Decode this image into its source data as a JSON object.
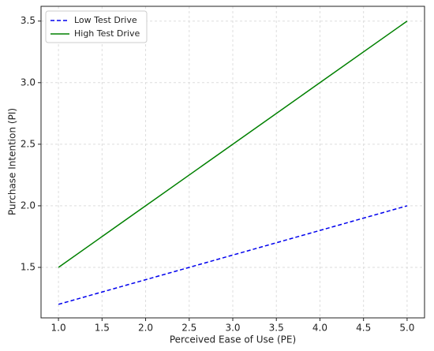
{
  "chart_data": {
    "type": "line",
    "x_label": "Perceived Ease of Use (PE)",
    "y_label": "Purchase Intention (PI)",
    "x": [
      1.0,
      2.0,
      3.0,
      4.0,
      5.0
    ],
    "series": [
      {
        "name": "Low Test Drive",
        "color": "#0000ee",
        "dash": true,
        "values": [
          1.2,
          1.4,
          1.6,
          1.8,
          2.0
        ]
      },
      {
        "name": "High Test Drive",
        "color": "#008000",
        "dash": false,
        "values": [
          1.5,
          2.0,
          2.5,
          3.0,
          3.5
        ]
      }
    ],
    "xlim": [
      0.8,
      5.2
    ],
    "ylim": [
      1.09,
      3.62
    ],
    "xticks": [
      {
        "value": 1,
        "label": "1.0"
      },
      1.5,
      {
        "value": 2,
        "label": "2.0"
      },
      2.5,
      {
        "value": 3,
        "label": "3.0"
      },
      3.5,
      {
        "value": 4,
        "label": "4.0"
      },
      4.5,
      {
        "value": 5,
        "label": "5.0"
      }
    ],
    "yticks": [
      1.5,
      {
        "value": 2,
        "label": "2.0"
      },
      2.5,
      {
        "value": 3,
        "label": "3.0"
      },
      3.5
    ],
    "grid": true,
    "legend": "upper-left"
  }
}
